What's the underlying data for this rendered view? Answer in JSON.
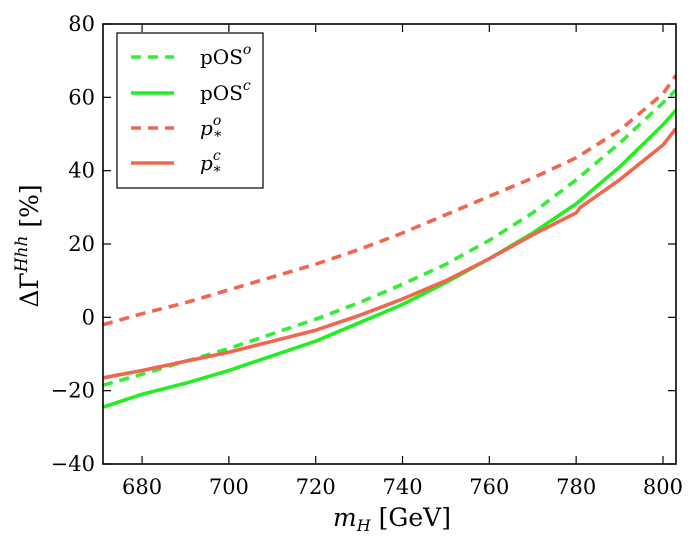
{
  "chart_data": {
    "type": "line",
    "title": "",
    "xlabel": "m_H [GeV]",
    "ylabel": "ΔΓ^Hhh [%]",
    "xlim": [
      671,
      803
    ],
    "ylim": [
      -40,
      80
    ],
    "x_ticks": [
      680,
      700,
      720,
      740,
      760,
      780,
      800
    ],
    "y_ticks": [
      -40,
      -20,
      0,
      20,
      40,
      60,
      80
    ],
    "x_tick_labels": [
      "680",
      "700",
      "720",
      "740",
      "760",
      "780",
      "800"
    ],
    "y_tick_labels": [
      "−40",
      "−20",
      "0",
      "20",
      "40",
      "60",
      "80"
    ],
    "grid": false,
    "legend_position": "top-left",
    "series": [
      {
        "name": "pOS^o",
        "label_main": "pOS",
        "label_sup": "o",
        "label_sub": "",
        "color": "#33ee33",
        "dash": "dashed",
        "x": [
          671,
          680,
          690,
          700,
          710,
          720,
          730,
          740,
          750,
          760,
          770,
          780,
          790,
          800,
          803
        ],
        "y": [
          -18.5,
          -15.5,
          -12,
          -8.5,
          -4.5,
          -0.5,
          4,
          9,
          14.5,
          21,
          28.5,
          37.5,
          47.5,
          58.5,
          62
        ]
      },
      {
        "name": "pOS^c",
        "label_main": "pOS",
        "label_sup": "c",
        "label_sub": "",
        "color": "#22ee22",
        "dash": "solid",
        "x": [
          671,
          680,
          690,
          700,
          710,
          720,
          730,
          740,
          750,
          760,
          770,
          780,
          790,
          800,
          803
        ],
        "y": [
          -24.5,
          -21,
          -18,
          -14.5,
          -10.5,
          -6.5,
          -1.5,
          3.5,
          9.5,
          16,
          23,
          31,
          41,
          52.5,
          56.5
        ]
      },
      {
        "name": "p_*^o",
        "label_main": "p",
        "label_sup": "o",
        "label_sub": "*",
        "color": "#f26650",
        "dash": "dashed",
        "x": [
          671,
          680,
          690,
          700,
          710,
          720,
          730,
          740,
          750,
          760,
          770,
          780,
          790,
          800,
          803
        ],
        "y": [
          -2,
          1,
          4,
          7.5,
          11,
          14.5,
          18.5,
          23,
          28,
          33,
          38,
          43.5,
          51,
          61,
          66
        ]
      },
      {
        "name": "p_*^c",
        "label_main": "p",
        "label_sup": "c",
        "label_sub": "*",
        "color": "#f26650",
        "dash": "solid",
        "x": [
          671,
          680,
          690,
          700,
          710,
          720,
          730,
          740,
          750,
          760,
          770,
          780,
          781,
          790,
          800,
          803
        ],
        "y": [
          -16.5,
          -14.5,
          -12,
          -9.5,
          -6.5,
          -3.5,
          0.5,
          5,
          10,
          16,
          22.5,
          28.5,
          30,
          37.5,
          47,
          51.5
        ]
      }
    ]
  }
}
